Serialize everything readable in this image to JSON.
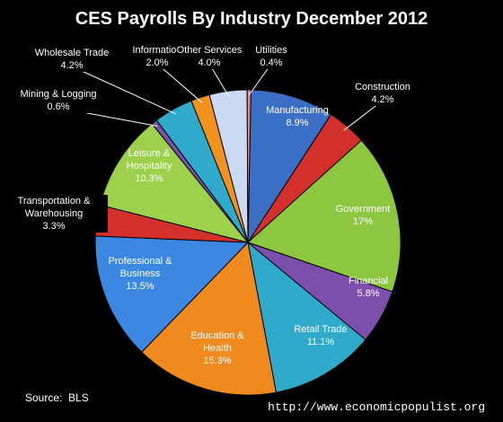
{
  "chart_data": {
    "type": "pie",
    "title": "CES Payrolls By Industry December 2012",
    "source": "Source:  BLS",
    "url": "http://www.economicpopulist.org",
    "categories": [
      "Manufacturing",
      "Construction",
      "Government",
      "Financial",
      "Retail Trade",
      "Education & Health",
      "Professional & Business",
      "Transportation & Warehousing",
      "Leisure & Hospitality",
      "Mining & Logging",
      "Wholesale Trade",
      "Information",
      "Other Services",
      "Utilities"
    ],
    "values": [
      8.9,
      4.2,
      17,
      5.8,
      11.1,
      15.3,
      13.5,
      3.3,
      10.3,
      0.6,
      4.2,
      2.0,
      4.0,
      0.4
    ],
    "value_labels": [
      "8.9%",
      "4.2%",
      "17%",
      "5.8%",
      "11.1%",
      "15.3%",
      "13.5%",
      "3.3%",
      "10.3%",
      "0.6%",
      "4.2%",
      "2.0%",
      "4.0%",
      "0.4%"
    ],
    "colors": [
      "#3b6fc6",
      "#d3302b",
      "#8dc63f",
      "#7b4fab",
      "#2faacb",
      "#f08a1e",
      "#3b87e2",
      "#d3302b",
      "#9dd04b",
      "#7b4fab",
      "#2faacb",
      "#f2921e",
      "#cad9f2",
      "#e48a8a"
    ]
  }
}
